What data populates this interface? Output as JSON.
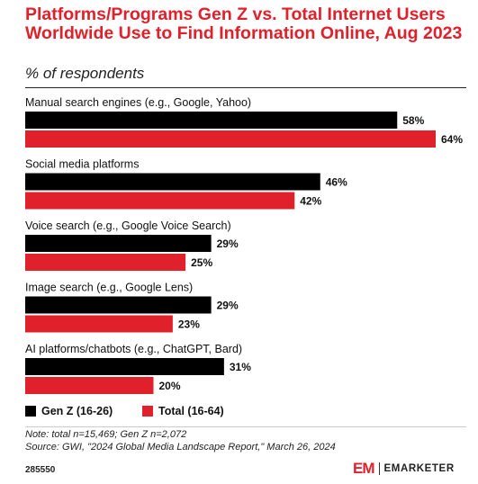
{
  "title": "Platforms/Programs Gen Z vs. Total Internet Users Worldwide Use to Find Information Online, Aug 2023",
  "subtitle": "% of respondents",
  "colors": {
    "gen_z": "#000000",
    "total": "#e0202b",
    "accent": "#e0202b"
  },
  "chart_data": {
    "type": "bar",
    "orientation": "horizontal",
    "categories": [
      "Manual search engines (e.g., Google, Yahoo)",
      "Social media platforms",
      "Voice search (e.g., Google Voice Search)",
      "Image search (e.g., Google Lens)",
      "AI platforms/chatbots (e.g., ChatGPT, Bard)"
    ],
    "series": [
      {
        "name": "Gen Z (16-26)",
        "values": [
          58,
          46,
          29,
          29,
          31
        ],
        "color": "#000000"
      },
      {
        "name": "Total (16-64)",
        "values": [
          64,
          42,
          25,
          23,
          20
        ],
        "color": "#e0202b"
      }
    ],
    "value_suffix": "%",
    "xlim": [
      0,
      64
    ],
    "grid": false,
    "legend_position": "bottom-left"
  },
  "legend": {
    "gen_z_label": "Gen Z (16-26)",
    "total_label": "Total (16-64)"
  },
  "note": "Note: total n=15,469; Gen Z n=2,072",
  "source": "Source: GWI, \"2024 Global Media Landscape Report,\" March 26, 2024",
  "chart_id": "285550",
  "brand": {
    "logo": "EM",
    "name": "EMARKETER"
  }
}
